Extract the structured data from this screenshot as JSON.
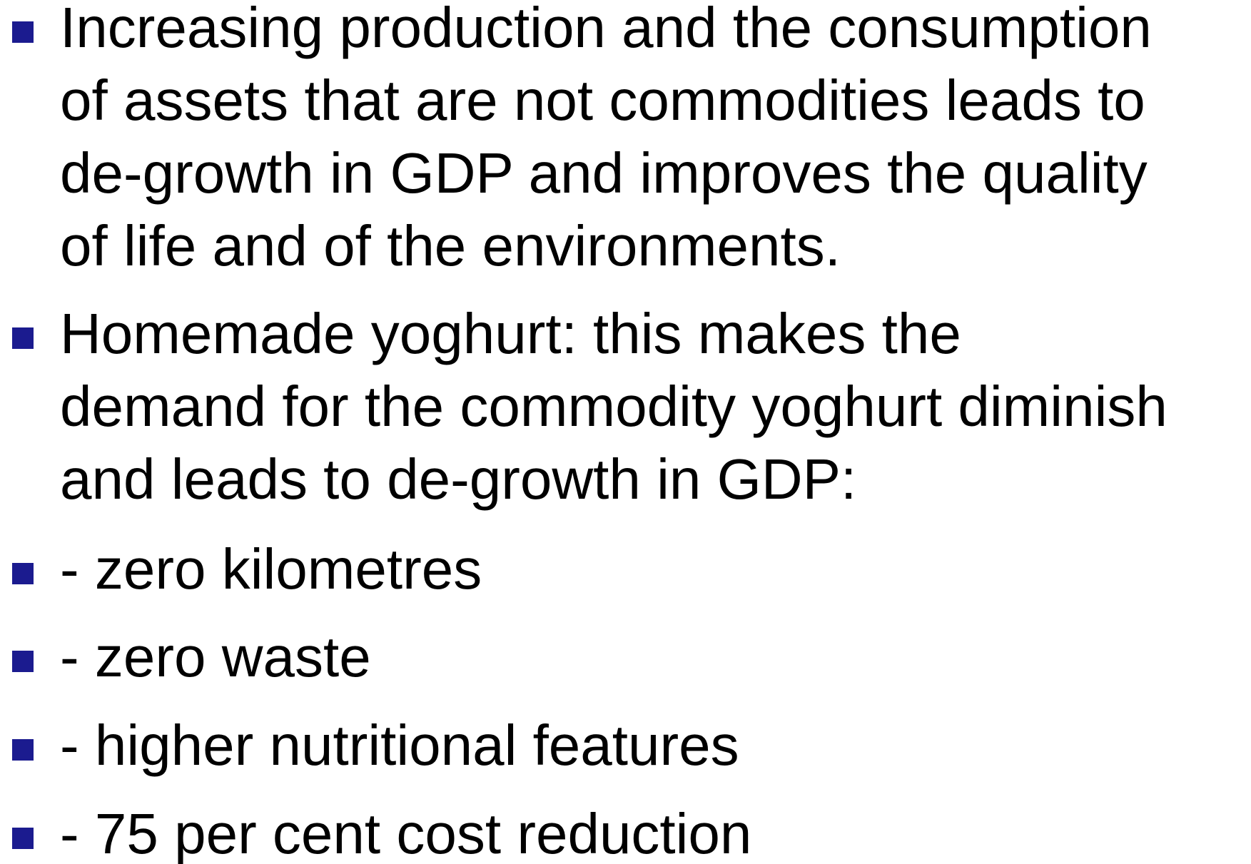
{
  "bullets": [
    {
      "lines": [
        "Increasing production and the consumption",
        "of assets that are not commodities leads to",
        "de-growth in GDP and improves the quality",
        "of life and of the environments."
      ]
    },
    {
      "lines": [
        "Homemade yoghurt: this makes the",
        "demand for the commodity yoghurt diminish",
        "and leads to de-growth in GDP:"
      ]
    },
    {
      "lines": [
        "- zero kilometres"
      ]
    },
    {
      "lines": [
        "- zero waste"
      ]
    },
    {
      "lines": [
        "- higher nutritional features"
      ]
    },
    {
      "lines": [
        "- 75 per cent cost reduction"
      ]
    }
  ]
}
